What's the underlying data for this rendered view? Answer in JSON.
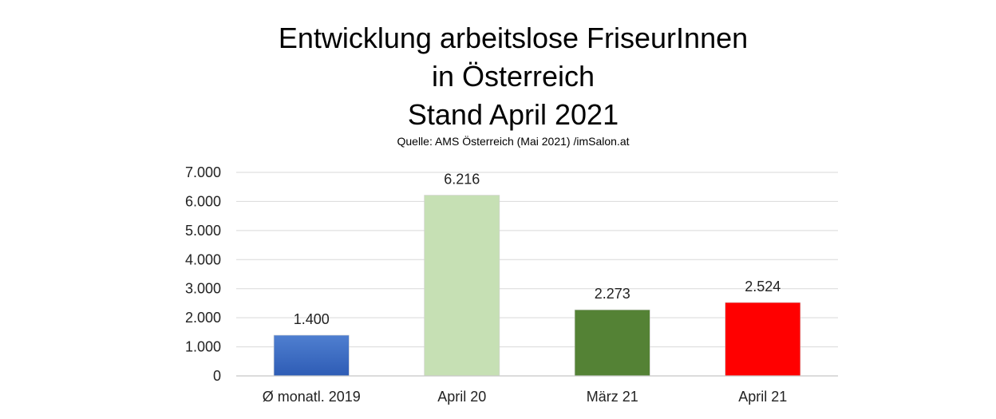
{
  "chart_data": {
    "type": "bar",
    "title_lines": [
      "Entwicklung arbeitslose FriseurInnen",
      "in Österreich",
      "Stand April 2021"
    ],
    "subtitle": "Quelle: AMS Österreich (Mai 2021) /imSalon.at",
    "categories": [
      "Ø monatl. 2019",
      "April 20",
      "März 21",
      "April 21"
    ],
    "values": [
      1400,
      6216,
      2273,
      2524
    ],
    "data_labels": [
      "1.400",
      "6.216",
      "2.273",
      "2.524"
    ],
    "bar_colors": [
      "#3a6cc4",
      "#c6e0b4",
      "#548235",
      "#ff0000"
    ],
    "ylim": [
      0,
      7000
    ],
    "yticks": [
      0,
      1000,
      2000,
      3000,
      4000,
      5000,
      6000,
      7000
    ],
    "ytick_labels": [
      "0",
      "1.000",
      "2.000",
      "3.000",
      "4.000",
      "5.000",
      "6.000",
      "7.000"
    ],
    "grid": true,
    "legend": "none",
    "xlabel": "",
    "ylabel": ""
  }
}
